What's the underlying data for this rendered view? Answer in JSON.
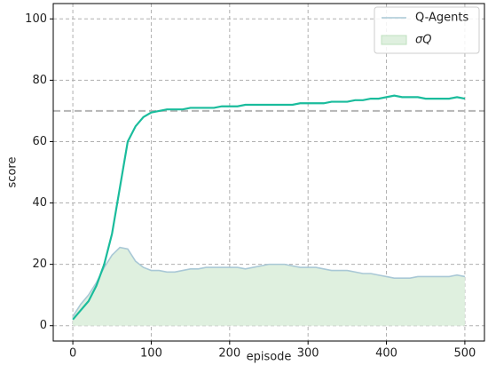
{
  "chart_data": {
    "type": "line",
    "x_label": "episode",
    "y_label": "score",
    "x": [
      0,
      10,
      20,
      30,
      40,
      50,
      60,
      70,
      80,
      90,
      100,
      110,
      120,
      130,
      140,
      150,
      160,
      170,
      180,
      190,
      200,
      210,
      220,
      230,
      240,
      250,
      260,
      270,
      280,
      290,
      300,
      310,
      320,
      330,
      340,
      350,
      360,
      370,
      380,
      390,
      400,
      410,
      420,
      430,
      440,
      450,
      460,
      470,
      480,
      490,
      500
    ],
    "series": [
      {
        "color": "#1abc9c",
        "values": [
          2,
          5,
          8,
          13,
          20,
          30,
          45,
          60,
          65,
          68,
          69.5,
          70,
          70.5,
          70.5,
          70.5,
          71,
          71,
          71,
          71,
          71.5,
          71.5,
          71.5,
          72,
          72,
          72,
          72,
          72,
          72,
          72,
          72.5,
          72.5,
          72.5,
          72.5,
          73,
          73,
          73,
          73.5,
          73.5,
          74,
          74,
          74.5,
          75,
          74.5,
          74.5,
          74.5,
          74,
          74,
          74,
          74,
          74.5,
          74
        ]
      },
      {
        "name": "Q-Agents",
        "color": "#a9c8d6",
        "values": [
          3,
          7,
          10,
          14,
          19,
          23,
          25.5,
          25,
          21,
          19,
          18,
          18,
          17.5,
          17.5,
          18,
          18.5,
          18.5,
          19,
          19,
          19,
          19,
          19,
          18.5,
          19,
          19.5,
          20,
          20,
          20,
          19.5,
          19,
          19,
          19,
          18.5,
          18,
          18,
          18,
          17.5,
          17,
          17,
          16.5,
          16,
          15.5,
          15.5,
          15.5,
          16,
          16,
          16,
          16,
          16,
          16.5,
          16
        ]
      }
    ],
    "area": {
      "name": "σQ",
      "color": "#dff0df",
      "edge": "#bfe0bf"
    },
    "hline": 70,
    "xlim": [
      -25,
      525
    ],
    "xticks": [
      0,
      100,
      200,
      300,
      400,
      500
    ],
    "ylim": [
      -5,
      105
    ],
    "yticks": [
      0,
      20,
      40,
      60,
      80,
      100
    ],
    "grid": true,
    "legend": "upper right"
  }
}
